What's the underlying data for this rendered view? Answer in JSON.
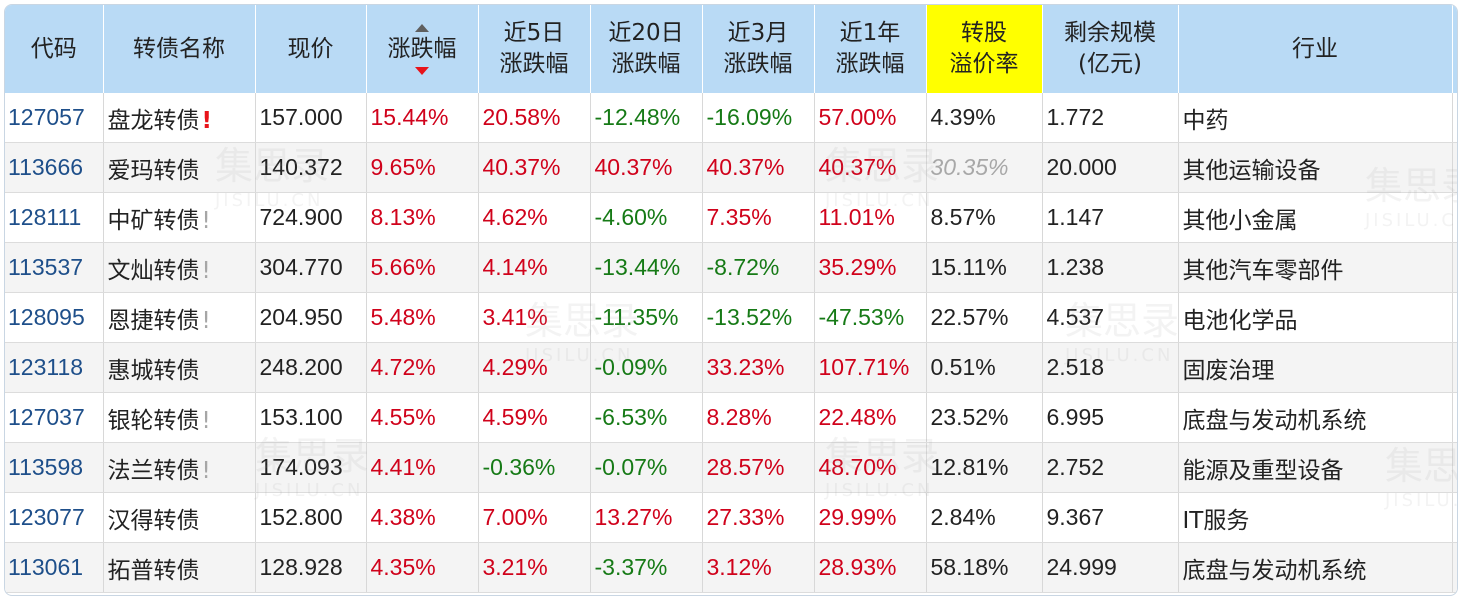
{
  "headers": [
    {
      "lines": [
        "代码"
      ]
    },
    {
      "lines": [
        "转债名称"
      ]
    },
    {
      "lines": [
        "现价"
      ]
    },
    {
      "lines": [
        "涨跌幅"
      ]
    },
    {
      "lines": [
        "近5日",
        "涨跌幅"
      ]
    },
    {
      "lines": [
        "近20日",
        "涨跌幅"
      ]
    },
    {
      "lines": [
        "近3月",
        "涨跌幅"
      ]
    },
    {
      "lines": [
        "近1年",
        "涨跌幅"
      ]
    },
    {
      "lines": [
        "转股",
        "溢价率"
      ]
    },
    {
      "lines": [
        "剩余规模",
        "(亿元)"
      ]
    },
    {
      "lines": [
        "行业"
      ]
    }
  ],
  "watermark": {
    "cn": "集思录",
    "en": "JISILU.CN"
  },
  "warn_mark": "!",
  "rows": [
    {
      "code": "127057",
      "name": "盘龙转债",
      "warn": "red",
      "price": "157.000",
      "chg": "15.44%",
      "d5": "20.58%",
      "d20": "-12.48%",
      "m3": "-16.09%",
      "y1": "57.00%",
      "premium": "4.39%",
      "premium_muted": false,
      "scale": "1.772",
      "industry": "中药"
    },
    {
      "code": "113666",
      "name": "爱玛转债",
      "warn": "",
      "price": "140.372",
      "chg": "9.65%",
      "d5": "40.37%",
      "d20": "40.37%",
      "m3": "40.37%",
      "y1": "40.37%",
      "premium": "30.35%",
      "premium_muted": true,
      "scale": "20.000",
      "industry": "其他运输设备"
    },
    {
      "code": "128111",
      "name": "中矿转债",
      "warn": "gray",
      "price": "724.900",
      "chg": "8.13%",
      "d5": "4.62%",
      "d20": "-4.60%",
      "m3": "7.35%",
      "y1": "11.01%",
      "premium": "8.57%",
      "premium_muted": false,
      "scale": "1.147",
      "industry": "其他小金属"
    },
    {
      "code": "113537",
      "name": "文灿转债",
      "warn": "gray",
      "price": "304.770",
      "chg": "5.66%",
      "d5": "4.14%",
      "d20": "-13.44%",
      "m3": "-8.72%",
      "y1": "35.29%",
      "premium": "15.11%",
      "premium_muted": false,
      "scale": "1.238",
      "industry": "其他汽车零部件"
    },
    {
      "code": "128095",
      "name": "恩捷转债",
      "warn": "gray",
      "price": "204.950",
      "chg": "5.48%",
      "d5": "3.41%",
      "d20": "-11.35%",
      "m3": "-13.52%",
      "y1": "-47.53%",
      "premium": "22.57%",
      "premium_muted": false,
      "scale": "4.537",
      "industry": "电池化学品"
    },
    {
      "code": "123118",
      "name": "惠城转债",
      "warn": "",
      "price": "248.200",
      "chg": "4.72%",
      "d5": "4.29%",
      "d20": "-0.09%",
      "m3": "33.23%",
      "y1": "107.71%",
      "premium": "0.51%",
      "premium_muted": false,
      "scale": "2.518",
      "industry": "固废治理"
    },
    {
      "code": "127037",
      "name": "银轮转债",
      "warn": "gray",
      "price": "153.100",
      "chg": "4.55%",
      "d5": "4.59%",
      "d20": "-6.53%",
      "m3": "8.28%",
      "y1": "22.48%",
      "premium": "23.52%",
      "premium_muted": false,
      "scale": "6.995",
      "industry": "底盘与发动机系统"
    },
    {
      "code": "113598",
      "name": "法兰转债",
      "warn": "gray",
      "price": "174.093",
      "chg": "4.41%",
      "d5": "-0.36%",
      "d20": "-0.07%",
      "m3": "28.57%",
      "y1": "48.70%",
      "premium": "12.81%",
      "premium_muted": false,
      "scale": "2.752",
      "industry": "能源及重型设备"
    },
    {
      "code": "123077",
      "name": "汉得转债",
      "warn": "",
      "price": "152.800",
      "chg": "4.38%",
      "d5": "7.00%",
      "d20": "13.27%",
      "m3": "27.33%",
      "y1": "29.99%",
      "premium": "2.84%",
      "premium_muted": false,
      "scale": "9.367",
      "industry": "IT服务"
    },
    {
      "code": "113061",
      "name": "拓普转债",
      "warn": "",
      "price": "128.928",
      "chg": "4.35%",
      "d5": "3.21%",
      "d20": "-3.37%",
      "m3": "3.12%",
      "y1": "28.93%",
      "premium": "58.18%",
      "premium_muted": false,
      "scale": "24.999",
      "industry": "底盘与发动机系统"
    }
  ]
}
